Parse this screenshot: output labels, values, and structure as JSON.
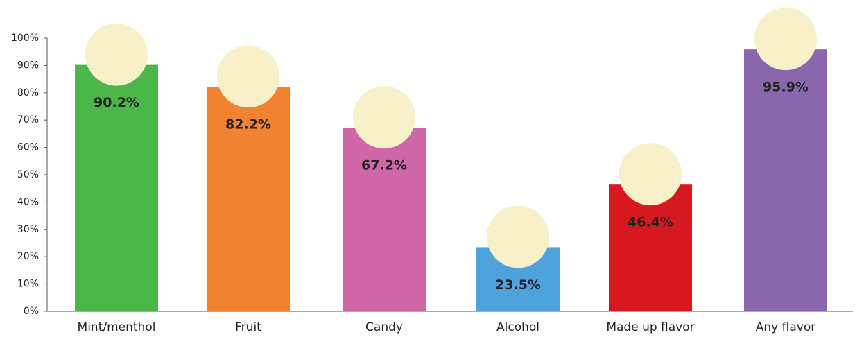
{
  "chart_data": {
    "type": "bar",
    "categories": [
      "Mint/menthol",
      "Fruit",
      "Candy",
      "Alcohol",
      "Made up flavor",
      "Any flavor"
    ],
    "values": [
      90.2,
      82.2,
      67.2,
      23.5,
      46.4,
      95.9
    ],
    "value_labels": [
      "90.2%",
      "82.2%",
      "67.2%",
      "23.5%",
      "46.4%",
      "95.9%"
    ],
    "colors": [
      "#4bb748",
      "#f08231",
      "#d067a8",
      "#4ea3dc",
      "#d7191f",
      "#8a67ad"
    ],
    "ylim": [
      0,
      100
    ],
    "yticks": [
      {
        "value": 0,
        "label": "0%"
      },
      {
        "value": 10,
        "label": "10%"
      },
      {
        "value": 20,
        "label": "20%"
      },
      {
        "value": 30,
        "label": "30%"
      },
      {
        "value": 40,
        "label": "40%"
      },
      {
        "value": 50,
        "label": "50%"
      },
      {
        "value": 60,
        "label": "60%"
      },
      {
        "value": 70,
        "label": "70%"
      },
      {
        "value": 80,
        "label": "80%"
      },
      {
        "value": 90,
        "label": "90%"
      },
      {
        "value": 100,
        "label": "100%"
      }
    ],
    "grid": false
  }
}
